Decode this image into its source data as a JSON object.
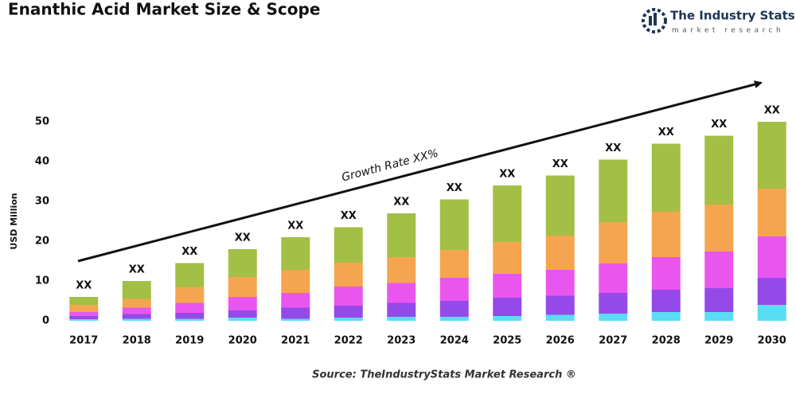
{
  "chart_data": {
    "type": "bar",
    "stacked": true,
    "title": "Enanthic Acid Market Size & Scope",
    "y_label": "USD Million",
    "annotation": "Growth Rate XX%",
    "source": "Source: TheIndustryStats Market Research ®",
    "logo": {
      "name": "The Industry Stats",
      "tagline": "market research"
    },
    "categories": [
      "2017",
      "2018",
      "2019",
      "2020",
      "2021",
      "2022",
      "2023",
      "2024",
      "2025",
      "2026",
      "2027",
      "2028",
      "2029",
      "2030"
    ],
    "total_labels": [
      "XX",
      "XX",
      "XX",
      "XX",
      "XX",
      "XX",
      "XX",
      "XX",
      "XX",
      "XX",
      "XX",
      "XX",
      "XX",
      "XX"
    ],
    "series": [
      {
        "color": "#5bdcf5",
        "values": [
          0.4,
          0.5,
          0.5,
          0.8,
          0.5,
          0.8,
          1,
          1,
          1.2,
          1.5,
          1.8,
          2.2,
          2.2,
          4
        ]
      },
      {
        "color": "#9549e8",
        "values": [
          0.8,
          1.2,
          1.5,
          1.8,
          2.8,
          3,
          3.5,
          4,
          4.6,
          4.8,
          5.2,
          5.6,
          6,
          6.8
        ]
      },
      {
        "color": "#e956ee",
        "values": [
          1,
          1.6,
          2.5,
          3.4,
          3.7,
          4.8,
          5,
          5.8,
          6,
          6.5,
          7.4,
          8.2,
          9.2,
          10.4
        ]
      },
      {
        "color": "#f5a54f",
        "values": [
          1.8,
          2.2,
          4,
          5,
          5.8,
          6,
          6.5,
          7,
          8,
          8.6,
          10.4,
          11.4,
          11.8,
          12
        ]
      },
      {
        "color": "#a3bf45",
        "values": [
          2,
          4.5,
          6,
          7,
          8.2,
          8.9,
          11,
          12.7,
          14.2,
          15.1,
          15.7,
          17.1,
          17.3,
          16.8
        ]
      }
    ],
    "ylim": [
      0,
      50
    ],
    "yticks": [
      0,
      10,
      20,
      30,
      40,
      50
    ],
    "grid": false
  }
}
